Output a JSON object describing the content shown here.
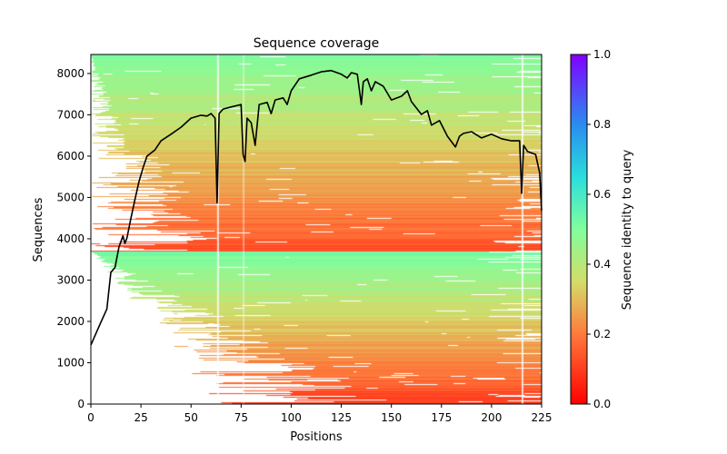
{
  "chart_data": {
    "type": "heatmap",
    "title": "Sequence coverage",
    "xlabel": "Positions",
    "ylabel": "Sequences",
    "xlim": [
      0,
      225
    ],
    "ylim": [
      0,
      8460
    ],
    "xticks": [
      0,
      25,
      50,
      75,
      100,
      125,
      150,
      175,
      200,
      225
    ],
    "yticks": [
      0,
      1000,
      2000,
      3000,
      4000,
      5000,
      6000,
      7000,
      8000
    ],
    "colorbar": {
      "label": "Sequence identity to query",
      "range": [
        0,
        1
      ],
      "ticks": [
        "0.0",
        "0.2",
        "0.4",
        "0.6",
        "0.8",
        "1.0"
      ],
      "colormap": "rainbow_r"
    },
    "coverage_line": {
      "name": "coverage",
      "color": "#000000",
      "x": [
        0,
        3,
        5,
        8,
        10,
        12,
        14,
        16,
        17,
        18,
        20,
        22,
        24,
        26,
        28,
        32,
        35,
        40,
        45,
        50,
        55,
        58,
        60,
        62,
        63,
        64,
        66,
        70,
        75,
        76,
        77,
        78,
        80,
        82,
        84,
        88,
        90,
        92,
        96,
        98,
        100,
        104,
        110,
        115,
        120,
        125,
        128,
        130,
        133,
        135,
        136,
        138,
        140,
        142,
        146,
        150,
        155,
        158,
        160,
        165,
        168,
        170,
        174,
        178,
        182,
        184,
        186,
        190,
        195,
        200,
        205,
        210,
        214,
        215,
        216,
        218,
        222,
        224,
        225
      ],
      "y": [
        1430,
        1760,
        1980,
        2300,
        3190,
        3300,
        3800,
        4070,
        3890,
        4020,
        4500,
        4950,
        5380,
        5710,
        6000,
        6150,
        6370,
        6530,
        6700,
        6920,
        6990,
        6970,
        7030,
        6920,
        4870,
        7030,
        7140,
        7190,
        7250,
        6040,
        5870,
        6920,
        6810,
        6260,
        7250,
        7300,
        7030,
        7360,
        7410,
        7250,
        7580,
        7870,
        7960,
        8040,
        8070,
        7980,
        7890,
        8020,
        7980,
        7250,
        7800,
        7870,
        7580,
        7800,
        7690,
        7360,
        7450,
        7580,
        7320,
        7010,
        7100,
        6750,
        6860,
        6480,
        6220,
        6480,
        6550,
        6590,
        6440,
        6530,
        6420,
        6370,
        6370,
        5100,
        6260,
        6110,
        6040,
        5600,
        4680
      ]
    }
  }
}
